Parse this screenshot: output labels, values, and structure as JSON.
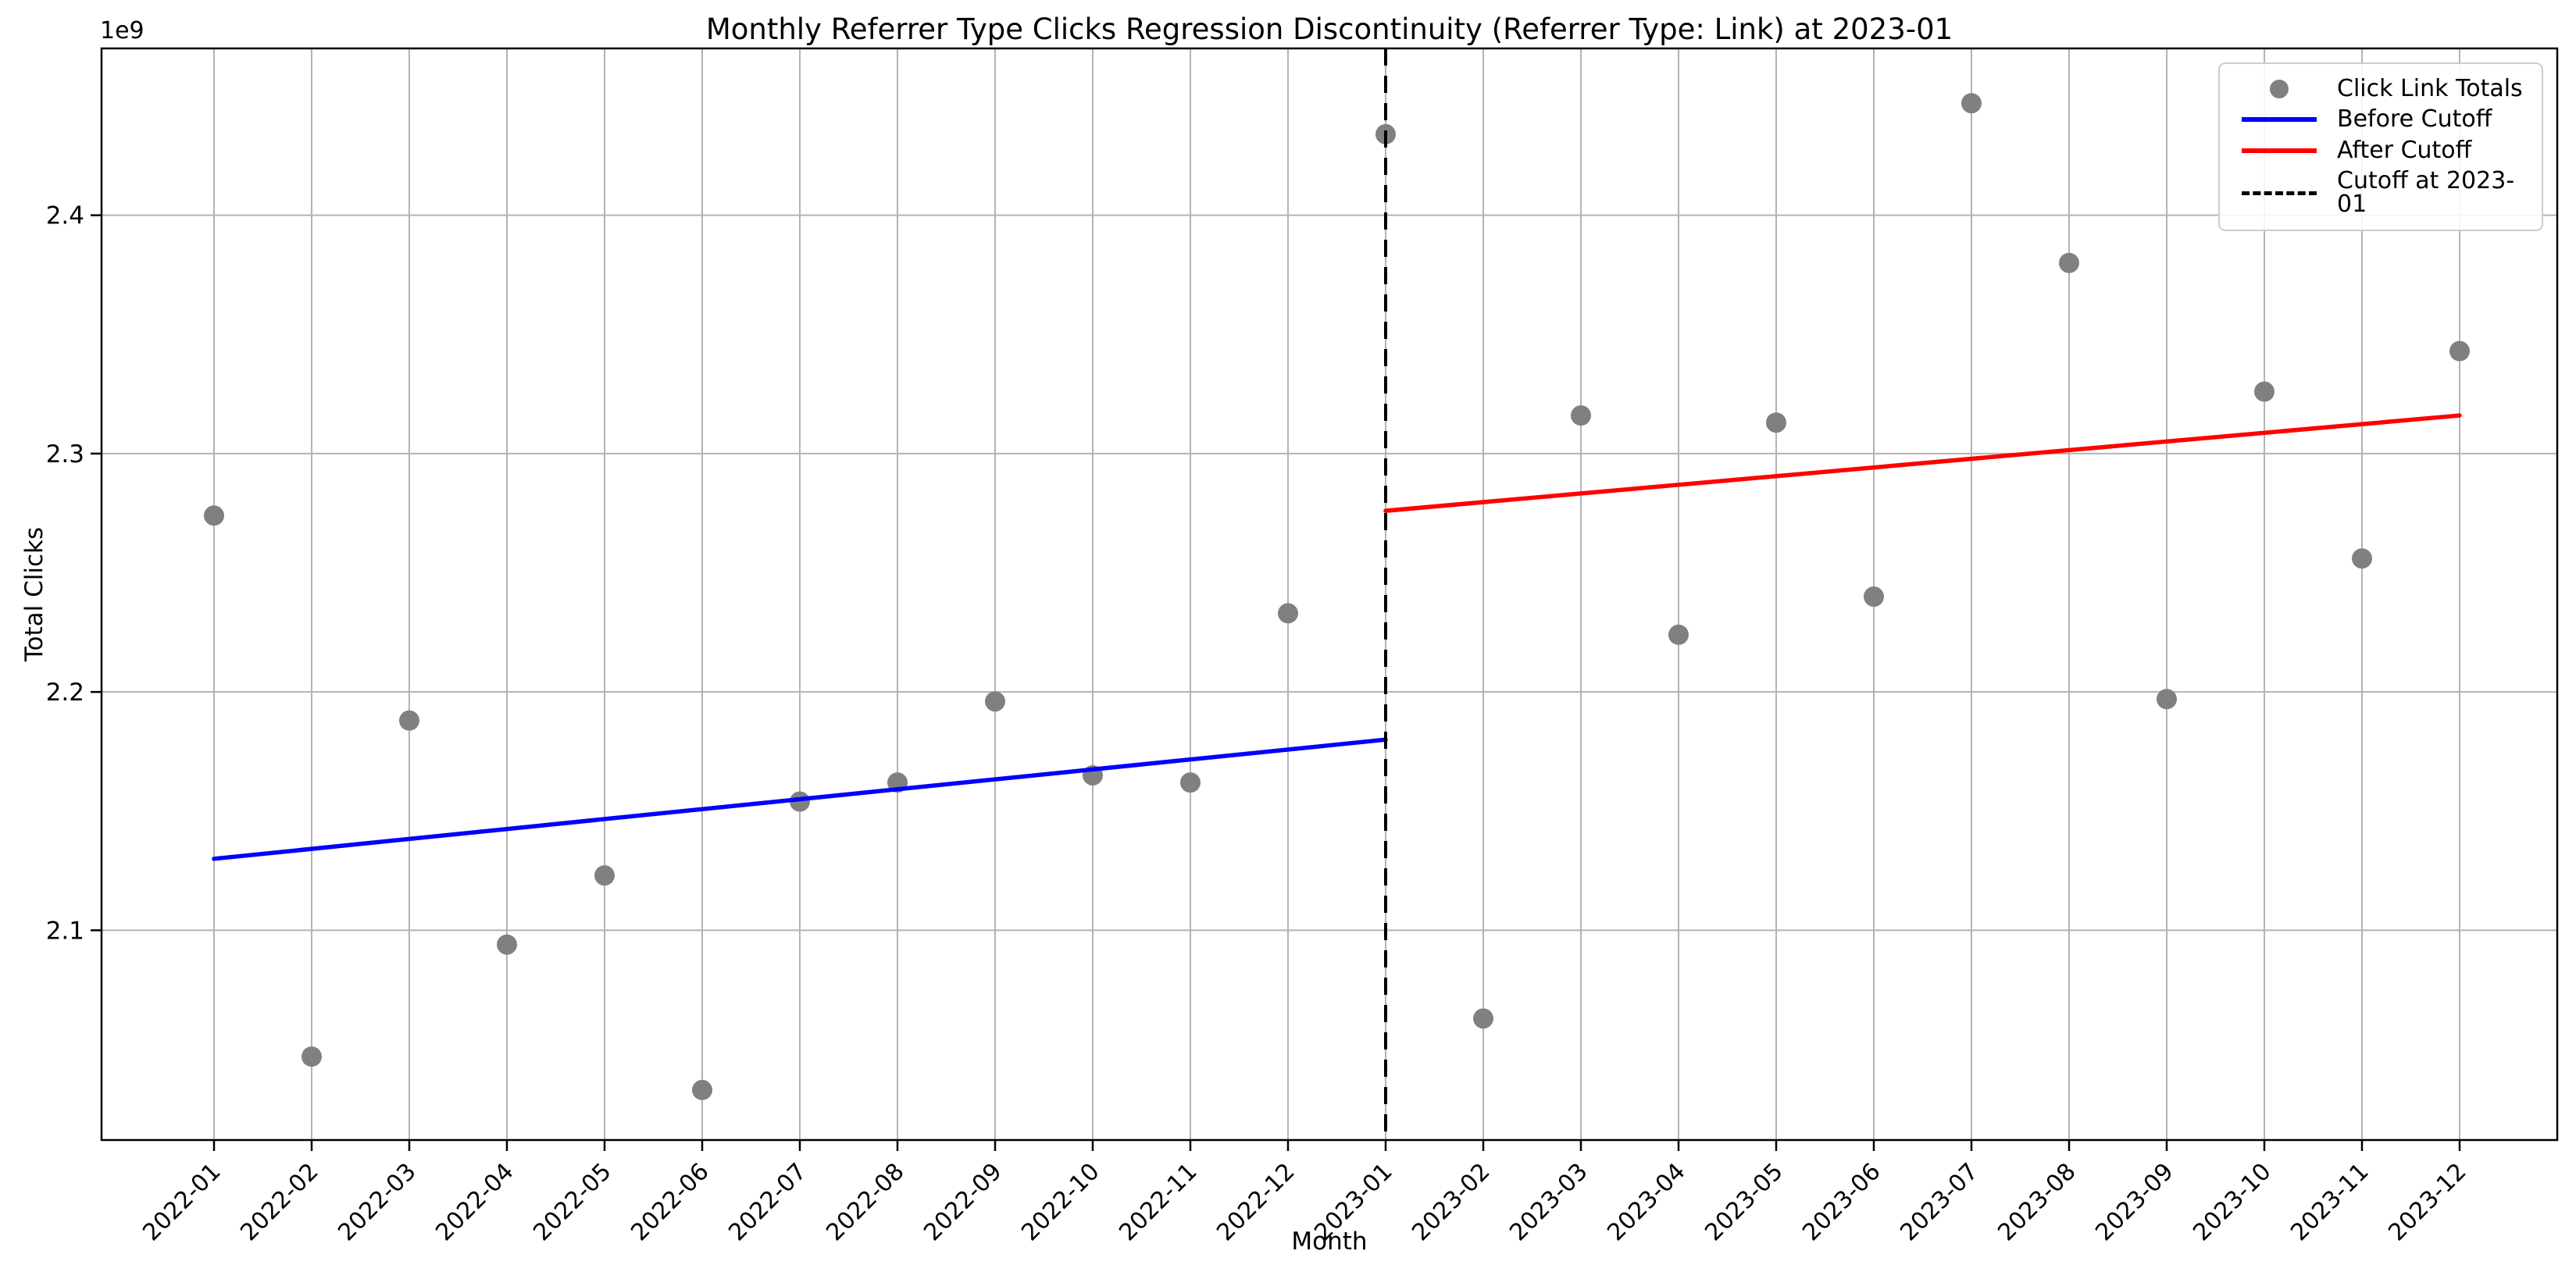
{
  "chart_data": {
    "type": "scatter",
    "title": "Monthly Referrer Type Clicks Regression Discontinuity (Referrer Type: Link) at 2023-01",
    "xlabel": "Month",
    "ylabel": "Total Clicks",
    "y_offset_label": "1e9",
    "values_unit": "1e9 clicks",
    "grid": true,
    "legend_position": "upper right",
    "categories": [
      "2022-01",
      "2022-02",
      "2022-03",
      "2022-04",
      "2022-05",
      "2022-06",
      "2022-07",
      "2022-08",
      "2022-09",
      "2022-10",
      "2022-11",
      "2022-12",
      "2023-01",
      "2023-02",
      "2023-03",
      "2023-04",
      "2023-05",
      "2023-06",
      "2023-07",
      "2023-08",
      "2023-09",
      "2023-10",
      "2023-11",
      "2023-12"
    ],
    "y_ticks": [
      2.1,
      2.2,
      2.3,
      2.4
    ],
    "ylim": [
      2.012,
      2.47
    ],
    "series": [
      {
        "name": "Click Link Totals",
        "kind": "scatter",
        "color": "#808080",
        "values": [
          2.274,
          2.047,
          2.188,
          2.094,
          2.123,
          2.033,
          2.154,
          2.162,
          2.196,
          2.165,
          2.162,
          2.233,
          2.434,
          2.063,
          2.316,
          2.224,
          2.313,
          2.24,
          2.447,
          2.38,
          2.197,
          2.326,
          2.256,
          2.343
        ]
      },
      {
        "name": "Before Cutoff",
        "kind": "line",
        "color": "#0000ff",
        "x": [
          "2022-01",
          "2023-01"
        ],
        "y": [
          2.13,
          2.18
        ]
      },
      {
        "name": "After Cutoff",
        "kind": "line",
        "color": "#ff0000",
        "x": [
          "2023-01",
          "2023-12"
        ],
        "y": [
          2.276,
          2.316
        ]
      },
      {
        "name": "Cutoff at 2023-01",
        "kind": "vline",
        "color": "#000000",
        "x": "2023-01",
        "dashed": true
      }
    ],
    "cutoff_category": "2023-01"
  },
  "legend": {
    "items": [
      {
        "label": "Click Link Totals",
        "marker": "dot",
        "color": "#808080"
      },
      {
        "label": "Before Cutoff",
        "marker": "line",
        "color": "#0000ff"
      },
      {
        "label": "After Cutoff",
        "marker": "line",
        "color": "#ff0000"
      },
      {
        "label": "Cutoff at 2023-01",
        "marker": "dash",
        "color": "#000000"
      }
    ]
  },
  "style": {
    "grid_color": "#b3b3b3",
    "spine_color": "#000000",
    "tick_label_color": "#000000",
    "background": "#ffffff"
  }
}
